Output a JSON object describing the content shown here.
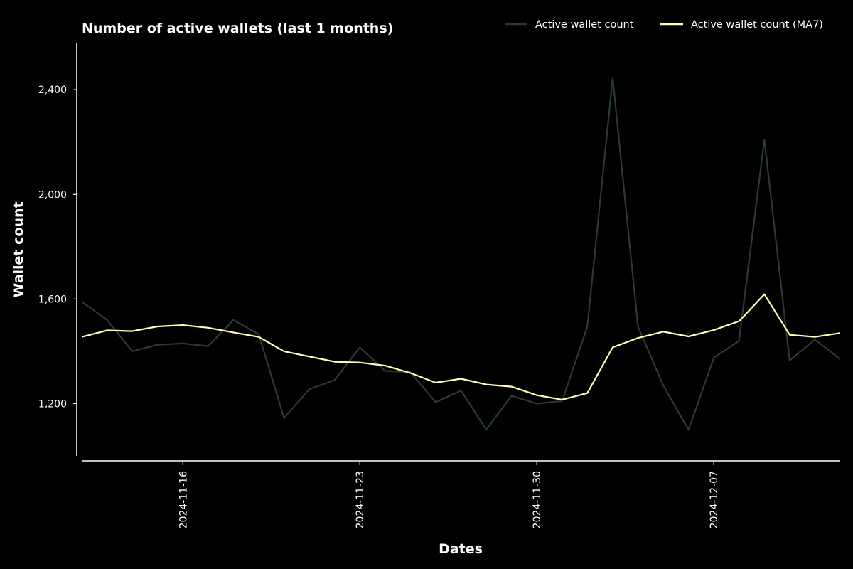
{
  "chart_data": {
    "type": "line",
    "title": "Number of active wallets (last 1 months)",
    "xlabel": "Dates",
    "ylabel": "Wallet count",
    "x": [
      "2024-11-12",
      "2024-11-13",
      "2024-11-14",
      "2024-11-15",
      "2024-11-16",
      "2024-11-17",
      "2024-11-18",
      "2024-11-19",
      "2024-11-20",
      "2024-11-21",
      "2024-11-22",
      "2024-11-23",
      "2024-11-24",
      "2024-11-25",
      "2024-11-26",
      "2024-11-27",
      "2024-11-28",
      "2024-11-29",
      "2024-11-30",
      "2024-12-01",
      "2024-12-02",
      "2024-12-03",
      "2024-12-04",
      "2024-12-05",
      "2024-12-06",
      "2024-12-07",
      "2024-12-08",
      "2024-12-09",
      "2024-12-10",
      "2024-12-11",
      "2024-12-12"
    ],
    "x_ticks": [
      "2024-11-16",
      "2024-11-23",
      "2024-11-30",
      "2024-12-07"
    ],
    "y_ticks": [
      1200,
      1600,
      2000,
      2400
    ],
    "y_tick_labels": [
      "1,200",
      "1,600",
      "2,000",
      "2,400"
    ],
    "ylim": [
      1000,
      2580
    ],
    "grid": false,
    "legend_position": "top-right",
    "series": [
      {
        "name": "Active wallet count",
        "color": "#2b3a36",
        "values": [
          1590,
          1520,
          1400,
          1425,
          1430,
          1420,
          1520,
          1465,
          1145,
          1255,
          1290,
          1415,
          1325,
          1320,
          1205,
          1250,
          1100,
          1230,
          1200,
          1210,
          1495,
          2445,
          1495,
          1270,
          1100,
          1375,
          1440,
          2210,
          1365,
          1445,
          1370
        ]
      },
      {
        "name": "Active wallet count (MA7)",
        "color": "#ffffb0",
        "values": [
          1455,
          1480,
          1477,
          1495,
          1500,
          1490,
          1472,
          1455,
          1400,
          1380,
          1360,
          1357,
          1345,
          1317,
          1280,
          1295,
          1273,
          1265,
          1232,
          1215,
          1240,
          1415,
          1451,
          1475,
          1457,
          1481,
          1515,
          1618,
          1463,
          1455,
          1470
        ]
      }
    ]
  }
}
